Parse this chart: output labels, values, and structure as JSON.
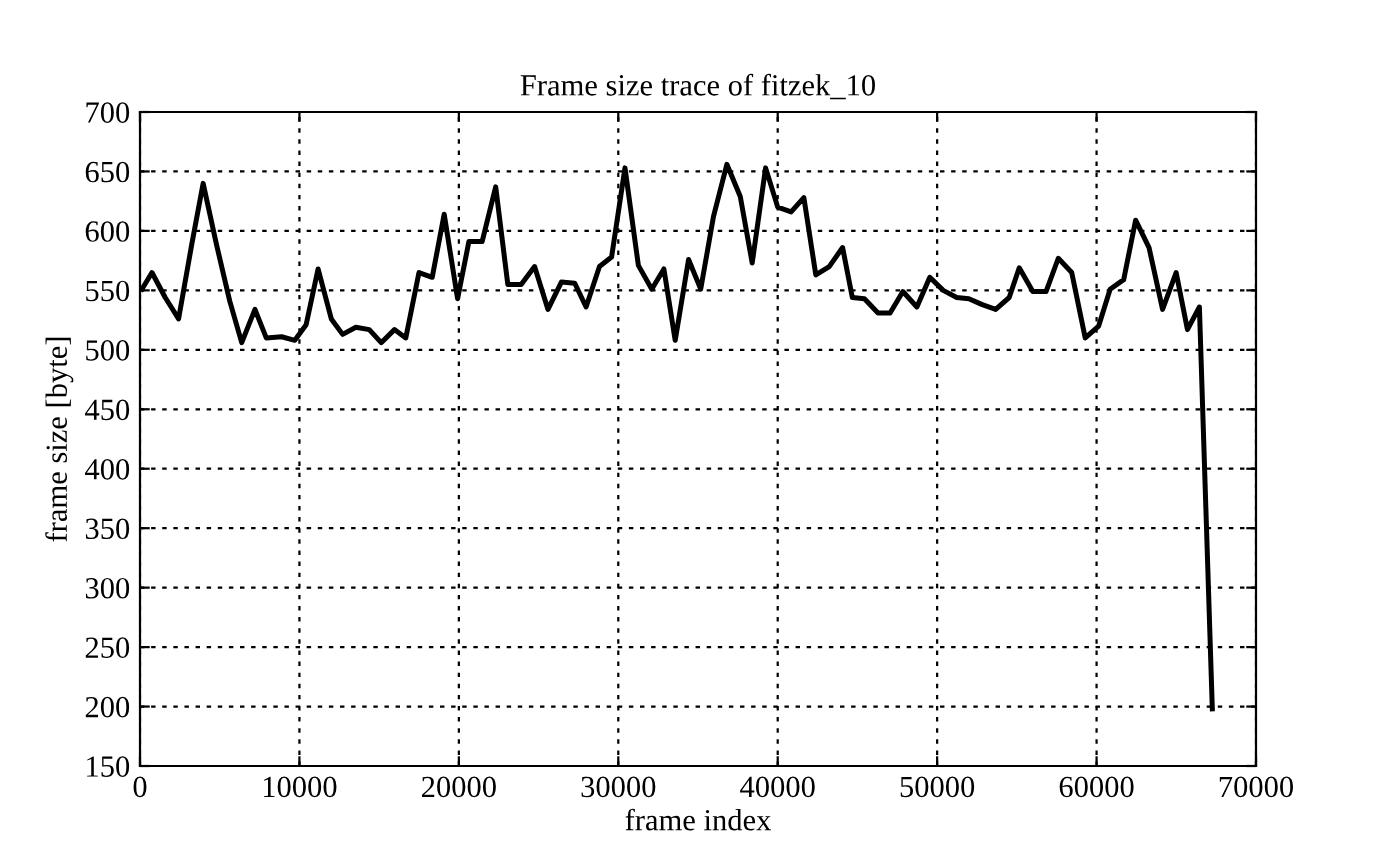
{
  "chart_data": {
    "type": "line",
    "title": "Frame size trace of fitzek_10",
    "xlabel": "frame index",
    "ylabel": "frame size [byte]",
    "x": [
      125,
      750,
      1580,
      2420,
      3250,
      3960,
      4790,
      5630,
      6380,
      7210,
      7920,
      8880,
      9710,
      10420,
      11170,
      12000,
      12710,
      13540,
      14380,
      15130,
      15960,
      16670,
      17500,
      18330,
      19080,
      19920,
      20630,
      21460,
      22310,
      23070,
      23910,
      24750,
      25590,
      26430,
      27270,
      27980,
      28820,
      29580,
      30420,
      31260,
      32100,
      32860,
      33570,
      34410,
      35170,
      35970,
      36810,
      37650,
      38400,
      39240,
      40000,
      40840,
      41640,
      42390,
      43230,
      44070,
      44680,
      45440,
      46290,
      47050,
      47850,
      48730,
      49540,
      50380,
      51230,
      51990,
      52830,
      53670,
      54520,
      55150,
      56000,
      56830,
      57600,
      58440,
      59290,
      60130,
      60850,
      61700,
      62450,
      63290,
      64140,
      64990,
      65700,
      66450,
      67260
    ],
    "series": [
      {
        "color": "#000000",
        "values": [
          551,
          565,
          544,
          526,
          589,
          640,
          589,
          541,
          506,
          534,
          510,
          511,
          508,
          521,
          568,
          526,
          513,
          519,
          517,
          506,
          517,
          510,
          565,
          561,
          614,
          543,
          591,
          591,
          637,
          555,
          555,
          570,
          534,
          557,
          556,
          536,
          570,
          578,
          653,
          571,
          551,
          568,
          508,
          576,
          551,
          612,
          656,
          629,
          573,
          653,
          620,
          616,
          628,
          563,
          570,
          586,
          544,
          543,
          531,
          531,
          549,
          536,
          561,
          550,
          544,
          543,
          538,
          534,
          544,
          569,
          549,
          549,
          577,
          565,
          510,
          520,
          551,
          559,
          609,
          586,
          534,
          565,
          517,
          536,
          198
        ]
      }
    ],
    "xlim": [
      0,
      70000
    ],
    "ylim": [
      150,
      700
    ],
    "xticks": [
      0,
      10000,
      20000,
      30000,
      40000,
      50000,
      60000,
      70000
    ],
    "yticks": [
      150,
      200,
      250,
      300,
      350,
      400,
      450,
      500,
      550,
      600,
      650,
      700
    ],
    "grid": true,
    "line_style": "solid",
    "marker": "none",
    "legend": false
  }
}
